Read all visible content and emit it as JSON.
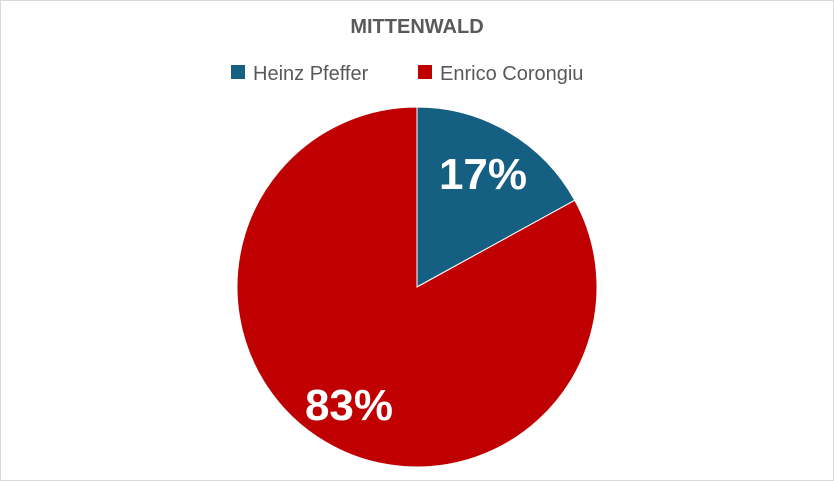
{
  "chart_data": {
    "type": "pie",
    "title": "MITTENWALD",
    "legend_position": "top",
    "slices": [
      {
        "name": "Heinz Pfeffer",
        "value": 17,
        "label": "17%",
        "color": "#156082"
      },
      {
        "name": "Enrico Corongiu",
        "value": 83,
        "label": "83%",
        "color": "#C00000"
      }
    ]
  }
}
